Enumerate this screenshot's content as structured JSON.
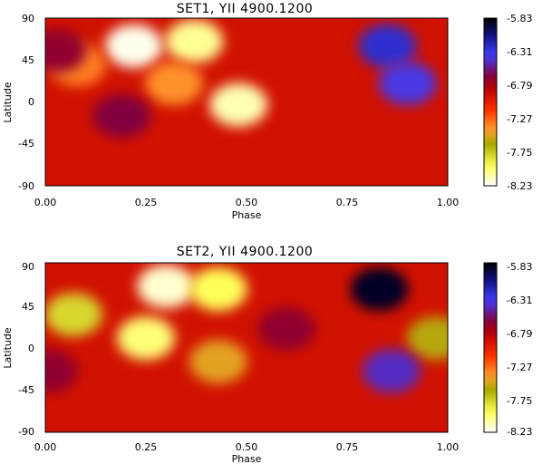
{
  "chart_data": [
    {
      "type": "heatmap",
      "title": "SET1, YII 4900.1200",
      "xlabel": "Phase",
      "ylabel": "Latitude",
      "xlim": [
        0,
        1
      ],
      "ylim": [
        -90,
        90
      ],
      "x_ticks": [
        "0.00",
        "0.25",
        "0.50",
        "0.75",
        "1.00"
      ],
      "y_ticks": [
        "-90",
        "-45",
        "0",
        "45",
        "90"
      ],
      "colorbar": {
        "range": [
          -8.23,
          -5.83
        ],
        "tick_labels": [
          "-5.83",
          "-6.31",
          "-6.79",
          "-7.27",
          "-7.75",
          "-8.23"
        ],
        "tick_values": [
          -5.83,
          -6.31,
          -6.79,
          -7.27,
          -7.75,
          -8.23
        ]
      },
      "background_level": -6.95,
      "features": [
        {
          "phase": 0.22,
          "lat": 60,
          "level": -8.2,
          "kind": "bright spot"
        },
        {
          "phase": 0.37,
          "lat": 65,
          "level": -8.05,
          "kind": "bright spot"
        },
        {
          "phase": 0.08,
          "lat": 40,
          "level": -7.35,
          "kind": "bright spot"
        },
        {
          "phase": 0.48,
          "lat": -3,
          "level": -8.1,
          "kind": "bright spot"
        },
        {
          "phase": 0.32,
          "lat": 20,
          "level": -7.4,
          "kind": "bright spot"
        },
        {
          "phase": 0.85,
          "lat": 60,
          "level": -6.25,
          "kind": "dark spot"
        },
        {
          "phase": 0.9,
          "lat": 20,
          "level": -6.4,
          "kind": "dark spot"
        },
        {
          "phase": 0.19,
          "lat": -15,
          "level": -6.65,
          "kind": "dark spot"
        },
        {
          "phase": 0.03,
          "lat": 55,
          "level": -6.7,
          "kind": "dark spot"
        }
      ]
    },
    {
      "type": "heatmap",
      "title": "SET2, YII 4900.1200",
      "xlabel": "Phase",
      "ylabel": "Latitude",
      "xlim": [
        0,
        1
      ],
      "ylim": [
        -90,
        90
      ],
      "x_ticks": [
        "0.00",
        "0.25",
        "0.50",
        "0.75",
        "1.00"
      ],
      "y_ticks": [
        "-90",
        "-45",
        "0",
        "45",
        "90"
      ],
      "colorbar": {
        "range": [
          -8.23,
          -5.83
        ],
        "tick_labels": [
          "-5.83",
          "-6.31",
          "-6.79",
          "-7.27",
          "-7.75",
          "-8.23"
        ],
        "tick_values": [
          -5.83,
          -6.31,
          -6.79,
          -7.27,
          -7.75,
          -8.23
        ]
      },
      "background_level": -6.95,
      "features": [
        {
          "phase": 0.3,
          "lat": 65,
          "level": -8.15,
          "kind": "bright spot"
        },
        {
          "phase": 0.43,
          "lat": 62,
          "level": -7.95,
          "kind": "bright spot"
        },
        {
          "phase": 0.25,
          "lat": 10,
          "level": -8.0,
          "kind": "bright spot"
        },
        {
          "phase": 0.07,
          "lat": 35,
          "level": -7.8,
          "kind": "bright spot"
        },
        {
          "phase": 0.97,
          "lat": 10,
          "level": -7.6,
          "kind": "bright spot"
        },
        {
          "phase": 0.43,
          "lat": -15,
          "level": -7.5,
          "kind": "bright spot"
        },
        {
          "phase": 0.83,
          "lat": 62,
          "level": -5.9,
          "kind": "dark spot"
        },
        {
          "phase": 0.86,
          "lat": -25,
          "level": -6.45,
          "kind": "dark spot"
        },
        {
          "phase": 0.01,
          "lat": -25,
          "level": -6.7,
          "kind": "dark spot"
        },
        {
          "phase": 0.6,
          "lat": 20,
          "level": -6.7,
          "kind": "dark spot"
        }
      ]
    }
  ]
}
